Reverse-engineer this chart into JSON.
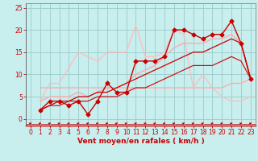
{
  "xlabel": "Vent moyen/en rafales ( km/h )",
  "xlim": [
    -0.5,
    23.5
  ],
  "ylim": [
    -1.5,
    26
  ],
  "xticks": [
    0,
    1,
    2,
    3,
    4,
    5,
    6,
    7,
    8,
    9,
    10,
    11,
    12,
    13,
    14,
    15,
    16,
    17,
    18,
    19,
    20,
    21,
    22,
    23
  ],
  "yticks": [
    0,
    5,
    10,
    15,
    20,
    25
  ],
  "bg_color": "#c8eeee",
  "grid_color": "#99cccc",
  "series": [
    {
      "x": [
        1,
        2,
        3,
        4,
        5,
        6,
        7,
        8,
        9,
        10,
        11,
        12,
        13,
        14,
        15,
        16,
        17,
        18,
        19,
        20,
        21,
        22,
        23
      ],
      "y": [
        2,
        4,
        4,
        3,
        4,
        1,
        4,
        8,
        6,
        6,
        13,
        13,
        13,
        14,
        20,
        20,
        19,
        18,
        19,
        19,
        22,
        17,
        9
      ],
      "color": "#cc0000",
      "marker": "D",
      "markersize": 2.5,
      "linewidth": 1.0,
      "zorder": 5
    },
    {
      "x": [
        1,
        2,
        3,
        4,
        5,
        6,
        7,
        8,
        9,
        10,
        11,
        12,
        13,
        14,
        15,
        16,
        17,
        18,
        19,
        20,
        21,
        22,
        23
      ],
      "y": [
        7,
        7,
        7,
        7,
        7,
        7,
        7,
        7,
        7,
        7,
        7,
        7,
        7,
        7,
        7,
        7,
        7,
        7,
        7,
        7,
        8,
        8,
        9
      ],
      "color": "#ffaaaa",
      "marker": null,
      "markersize": 0,
      "linewidth": 1.0,
      "zorder": 2
    },
    {
      "x": [
        1,
        2,
        3,
        4,
        5,
        6,
        7,
        8,
        9,
        10,
        11,
        12,
        13,
        14,
        15,
        16,
        17,
        18,
        19,
        20,
        21,
        22,
        23
      ],
      "y": [
        4,
        5,
        5,
        5,
        6,
        5,
        6,
        7,
        7,
        8,
        10,
        11,
        12,
        14,
        16,
        17,
        17,
        17,
        18,
        18,
        19,
        17,
        9
      ],
      "color": "#ffaaaa",
      "marker": null,
      "markersize": 0,
      "linewidth": 1.0,
      "zorder": 3
    },
    {
      "x": [
        1,
        2,
        3,
        5,
        7,
        8,
        10,
        11,
        12,
        13,
        14,
        15,
        16,
        17,
        18,
        19,
        20,
        21,
        22,
        23
      ],
      "y": [
        4,
        8,
        8,
        15,
        13,
        15,
        15,
        21,
        14,
        14,
        15,
        20,
        19,
        7,
        10,
        7,
        5,
        4,
        4,
        5
      ],
      "color": "#ffbbbb",
      "marker": null,
      "markersize": 0,
      "linewidth": 0.9,
      "zorder": 2
    },
    {
      "x": [
        1,
        2,
        3,
        4,
        5,
        6,
        7,
        8,
        9,
        10,
        11,
        12,
        13,
        14,
        15,
        16,
        17,
        18,
        19,
        20,
        21,
        22,
        23
      ],
      "y": [
        2,
        3,
        4,
        4,
        5,
        5,
        6,
        6,
        7,
        8,
        9,
        10,
        11,
        12,
        13,
        14,
        15,
        15,
        16,
        17,
        18,
        17,
        9
      ],
      "color": "#cc0000",
      "marker": null,
      "markersize": 0,
      "linewidth": 0.9,
      "zorder": 4
    },
    {
      "x": [
        1,
        2,
        3,
        4,
        5,
        6,
        7,
        8,
        9,
        10,
        11,
        12,
        13,
        14,
        15,
        16,
        17,
        18,
        19,
        20,
        21,
        22,
        23
      ],
      "y": [
        2,
        3,
        3,
        4,
        4,
        4,
        5,
        5,
        5,
        6,
        7,
        7,
        8,
        9,
        10,
        11,
        12,
        12,
        12,
        13,
        14,
        13,
        9
      ],
      "color": "#cc0000",
      "marker": null,
      "markersize": 0,
      "linewidth": 0.8,
      "zorder": 4
    }
  ],
  "axis_label_fontsize": 6.5,
  "tick_fontsize": 5.5
}
